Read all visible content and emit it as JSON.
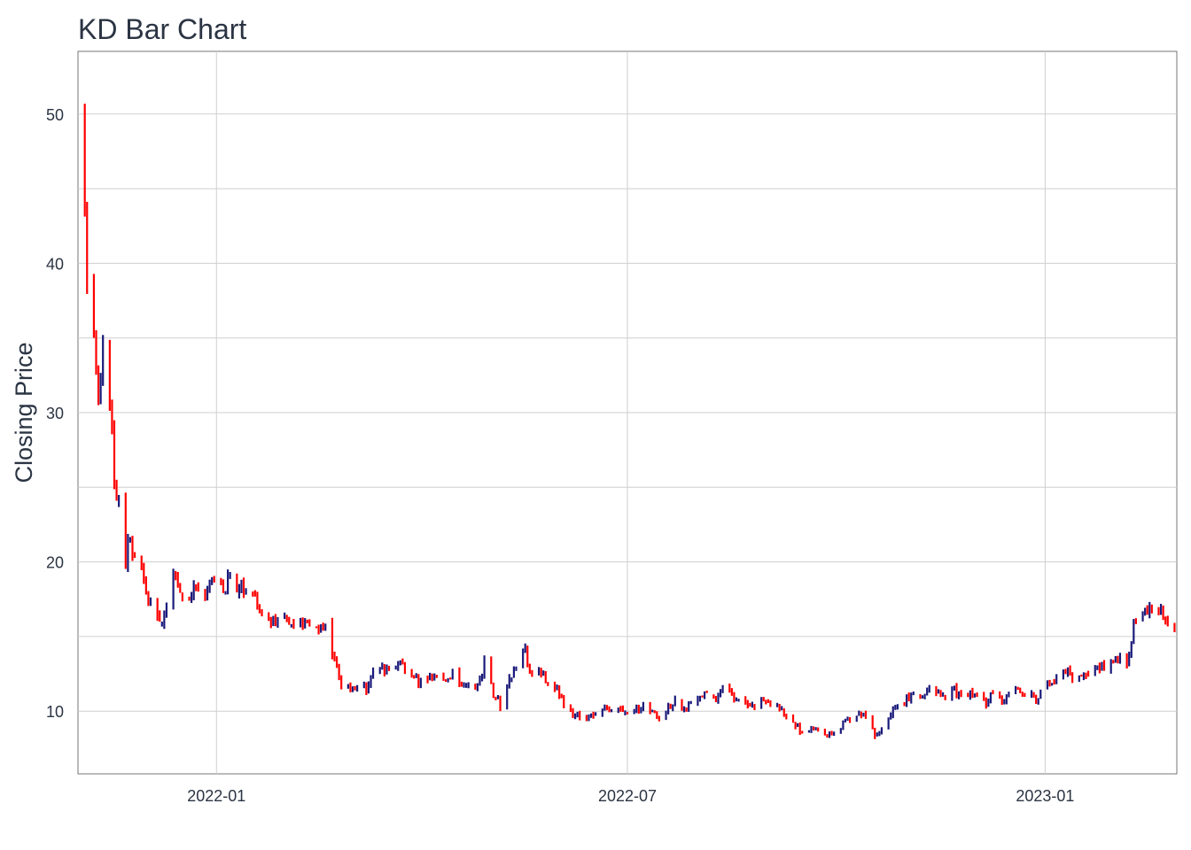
{
  "chart_data": {
    "type": "bar",
    "subtype": "ohlc",
    "title": "KD Bar Chart",
    "xlabel": "",
    "ylabel": "Closing Price",
    "xlim": [
      "2021-11-01",
      "2023-02-28"
    ],
    "ylim": [
      5.8,
      54.2
    ],
    "x_ticks": [
      "2022-01",
      "2022-07",
      "2023-01"
    ],
    "y_ticks": [
      10,
      20,
      30,
      40,
      50
    ],
    "grid": true,
    "legend": "none",
    "up_color": "#1a1a7a",
    "down_color": "#ff0000",
    "closes": [
      [
        "2021-11-04",
        45.0
      ],
      [
        "2021-11-05",
        38.0
      ],
      [
        "2021-11-08",
        35.3
      ],
      [
        "2021-11-09",
        32.6
      ],
      [
        "2021-11-10",
        31.6
      ],
      [
        "2021-11-12",
        34.0
      ],
      [
        "2021-11-15",
        31.0
      ],
      [
        "2021-11-16",
        28.2
      ],
      [
        "2021-11-17",
        25.2
      ],
      [
        "2021-11-19",
        24.0
      ],
      [
        "2021-11-22",
        20.0
      ],
      [
        "2021-11-23",
        22.0
      ],
      [
        "2021-11-24",
        21.2
      ],
      [
        "2021-11-29",
        19.6
      ],
      [
        "2021-11-30",
        18.5
      ],
      [
        "2021-12-01",
        17.8
      ],
      [
        "2021-12-03",
        17.2
      ],
      [
        "2021-12-06",
        16.5
      ],
      [
        "2021-12-08",
        16.0
      ],
      [
        "2021-12-09",
        16.8
      ],
      [
        "2021-12-13",
        19.3
      ],
      [
        "2021-12-14",
        18.8
      ],
      [
        "2021-12-16",
        18.2
      ],
      [
        "2021-12-20",
        17.8
      ],
      [
        "2021-12-22",
        18.5
      ],
      [
        "2021-12-27",
        17.6
      ],
      [
        "2021-12-28",
        18.4
      ],
      [
        "2021-12-30",
        18.8
      ],
      [
        "2022-01-03",
        18.6
      ],
      [
        "2022-01-05",
        18.2
      ],
      [
        "2022-01-06",
        19.0
      ],
      [
        "2022-01-10",
        18.0
      ],
      [
        "2022-01-13",
        18.3
      ],
      [
        "2022-01-18",
        17.6
      ],
      [
        "2022-01-20",
        17.0
      ],
      [
        "2022-01-24",
        16.2
      ],
      [
        "2022-01-27",
        15.8
      ],
      [
        "2022-02-01",
        16.5
      ],
      [
        "2022-02-04",
        15.8
      ],
      [
        "2022-02-08",
        16.0
      ],
      [
        "2022-02-11",
        15.6
      ],
      [
        "2022-02-15",
        15.3
      ],
      [
        "2022-02-18",
        15.6
      ],
      [
        "2022-02-22",
        13.2
      ],
      [
        "2022-02-25",
        11.6
      ],
      [
        "2022-03-01",
        11.4
      ],
      [
        "2022-03-04",
        11.8
      ],
      [
        "2022-03-08",
        11.4
      ],
      [
        "2022-03-11",
        12.5
      ],
      [
        "2022-03-15",
        13.0
      ],
      [
        "2022-03-18",
        12.6
      ],
      [
        "2022-03-22",
        13.2
      ],
      [
        "2022-03-25",
        13.0
      ],
      [
        "2022-03-29",
        12.2
      ],
      [
        "2022-04-01",
        11.9
      ],
      [
        "2022-04-05",
        12.3
      ],
      [
        "2022-04-08",
        12.6
      ],
      [
        "2022-04-12",
        12.2
      ],
      [
        "2022-04-15",
        12.4
      ],
      [
        "2022-04-19",
        11.8
      ],
      [
        "2022-04-22",
        12.0
      ],
      [
        "2022-04-26",
        11.6
      ],
      [
        "2022-04-29",
        13.2
      ],
      [
        "2022-05-03",
        11.2
      ],
      [
        "2022-05-06",
        10.4
      ],
      [
        "2022-05-10",
        12.0
      ],
      [
        "2022-05-13",
        13.0
      ],
      [
        "2022-05-17",
        14.0
      ],
      [
        "2022-05-20",
        12.2
      ],
      [
        "2022-05-24",
        12.6
      ],
      [
        "2022-05-27",
        12.0
      ],
      [
        "2022-05-31",
        11.4
      ],
      [
        "2022-06-03",
        10.6
      ],
      [
        "2022-06-07",
        9.8
      ],
      [
        "2022-06-10",
        9.5
      ],
      [
        "2022-06-14",
        9.8
      ],
      [
        "2022-06-17",
        9.6
      ],
      [
        "2022-06-21",
        10.2
      ],
      [
        "2022-06-24",
        9.9
      ],
      [
        "2022-06-28",
        10.0
      ],
      [
        "2022-07-01",
        10.0
      ],
      [
        "2022-07-06",
        10.2
      ],
      [
        "2022-07-08",
        10.4
      ],
      [
        "2022-07-12",
        9.8
      ],
      [
        "2022-07-15",
        9.6
      ],
      [
        "2022-07-19",
        10.3
      ],
      [
        "2022-07-22",
        10.6
      ],
      [
        "2022-07-26",
        10.0
      ],
      [
        "2022-07-29",
        10.4
      ],
      [
        "2022-08-02",
        10.8
      ],
      [
        "2022-08-05",
        11.2
      ],
      [
        "2022-08-09",
        11.0
      ],
      [
        "2022-08-12",
        11.4
      ],
      [
        "2022-08-16",
        11.0
      ],
      [
        "2022-08-19",
        10.8
      ],
      [
        "2022-08-23",
        10.6
      ],
      [
        "2022-08-26",
        10.4
      ],
      [
        "2022-08-30",
        10.9
      ],
      [
        "2022-09-02",
        10.4
      ],
      [
        "2022-09-06",
        10.2
      ],
      [
        "2022-09-09",
        9.6
      ],
      [
        "2022-09-13",
        9.0
      ],
      [
        "2022-09-16",
        8.6
      ],
      [
        "2022-09-20",
        8.8
      ],
      [
        "2022-09-23",
        8.6
      ],
      [
        "2022-09-27",
        8.3
      ],
      [
        "2022-09-30",
        8.6
      ],
      [
        "2022-10-04",
        9.2
      ],
      [
        "2022-10-07",
        9.5
      ],
      [
        "2022-10-11",
        9.8
      ],
      [
        "2022-10-14",
        9.6
      ],
      [
        "2022-10-18",
        8.4
      ],
      [
        "2022-10-21",
        9.0
      ],
      [
        "2022-10-25",
        9.8
      ],
      [
        "2022-10-28",
        10.4
      ],
      [
        "2022-11-01",
        10.8
      ],
      [
        "2022-11-04",
        11.2
      ],
      [
        "2022-11-08",
        11.0
      ],
      [
        "2022-11-11",
        11.6
      ],
      [
        "2022-11-15",
        11.4
      ],
      [
        "2022-11-18",
        11.0
      ],
      [
        "2022-11-22",
        11.4
      ],
      [
        "2022-11-25",
        10.8
      ],
      [
        "2022-11-29",
        11.2
      ],
      [
        "2022-12-02",
        11.0
      ],
      [
        "2022-12-06",
        10.6
      ],
      [
        "2022-12-09",
        11.2
      ],
      [
        "2022-12-13",
        10.8
      ],
      [
        "2022-12-16",
        11.0
      ],
      [
        "2022-12-20",
        11.4
      ],
      [
        "2022-12-23",
        11.2
      ],
      [
        "2022-12-28",
        10.9
      ],
      [
        "2023-01-03",
        11.8
      ],
      [
        "2023-01-06",
        12.2
      ],
      [
        "2023-01-10",
        12.6
      ],
      [
        "2023-01-13",
        12.4
      ],
      [
        "2023-01-17",
        12.6
      ],
      [
        "2023-01-20",
        12.2
      ],
      [
        "2023-01-24",
        12.8
      ],
      [
        "2023-01-27",
        12.9
      ],
      [
        "2023-01-31",
        13.2
      ],
      [
        "2023-02-03",
        13.6
      ],
      [
        "2023-02-07",
        13.4
      ],
      [
        "2023-02-09",
        16.0
      ],
      [
        "2023-02-13",
        16.4
      ],
      [
        "2023-02-16",
        16.9
      ],
      [
        "2023-02-21",
        16.6
      ],
      [
        "2023-02-24",
        16.2
      ],
      [
        "2023-02-27",
        15.6
      ]
    ]
  }
}
